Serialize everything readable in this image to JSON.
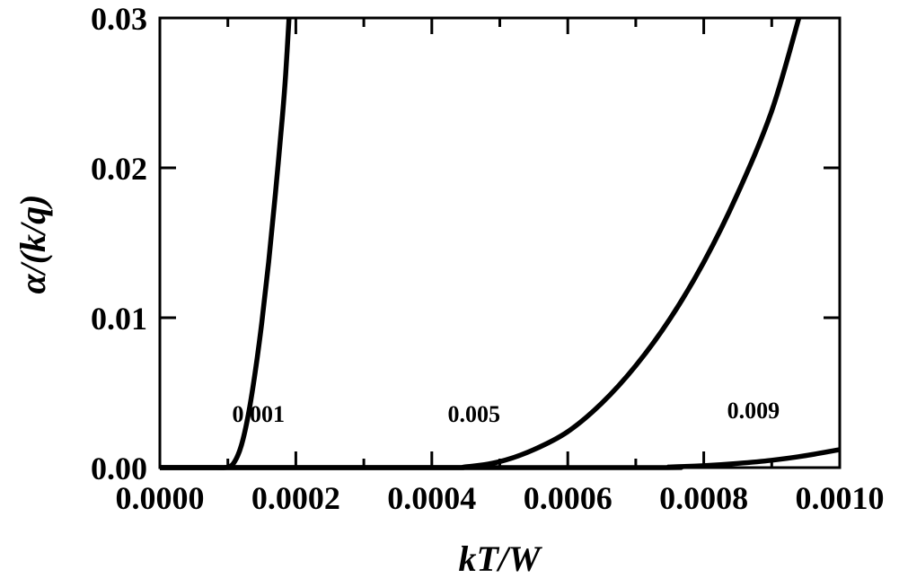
{
  "chart_data": {
    "type": "line",
    "title": "",
    "xlabel": "kT/W",
    "ylabel": "α/(k/q)",
    "xlim": [
      0,
      0.001
    ],
    "ylim": [
      0,
      0.03
    ],
    "xticks": [
      0.0,
      0.0002,
      0.0004,
      0.0006,
      0.0008,
      0.001
    ],
    "xtick_labels": [
      "0.0000",
      "0.0002",
      "0.0004",
      "0.0006",
      "0.0008",
      "0.0010"
    ],
    "xminor_ticks": [
      0.0001,
      0.0003,
      0.0005,
      0.0007,
      0.0009
    ],
    "yticks": [
      0.0,
      0.01,
      0.02,
      0.03
    ],
    "ytick_labels": [
      "0.00",
      "0.01",
      "0.02",
      "0.03"
    ],
    "grid": false,
    "legend": "none",
    "line_color": "#000000",
    "series": [
      {
        "name": "0.001",
        "label_at": [
          0.000145,
          0.00305
        ],
        "x": [
          0.0,
          8e-05,
          0.0001,
          0.00011,
          0.00012,
          0.00013,
          0.00014,
          0.00015,
          0.00016,
          0.00017,
          0.00018,
          0.000185,
          0.00019
        ],
        "y": [
          0.0,
          0.0,
          3e-05,
          0.0004,
          0.0015,
          0.0035,
          0.0063,
          0.0097,
          0.0137,
          0.0183,
          0.0233,
          0.0262,
          0.03
        ]
      },
      {
        "name": "0.005",
        "label_at": [
          0.000462,
          0.00305
        ],
        "x": [
          0.0,
          0.0004,
          0.00045,
          0.0005,
          0.00055,
          0.0006,
          0.00065,
          0.0007,
          0.00075,
          0.0008,
          0.00085,
          0.0009,
          0.00094
        ],
        "y": [
          0.0,
          0.0,
          5e-05,
          0.0004,
          0.0012,
          0.0024,
          0.0043,
          0.0068,
          0.0099,
          0.0137,
          0.0183,
          0.0238,
          0.03
        ]
      },
      {
        "name": "0.009",
        "label_at": [
          0.000873,
          0.0033
        ],
        "x": [
          0.0,
          0.0007,
          0.00075,
          0.0008,
          0.00085,
          0.0009,
          0.00095,
          0.001
        ],
        "y": [
          0.0,
          0.0,
          4e-05,
          0.00013,
          0.00028,
          0.00049,
          0.0008,
          0.0012
        ]
      }
    ]
  }
}
